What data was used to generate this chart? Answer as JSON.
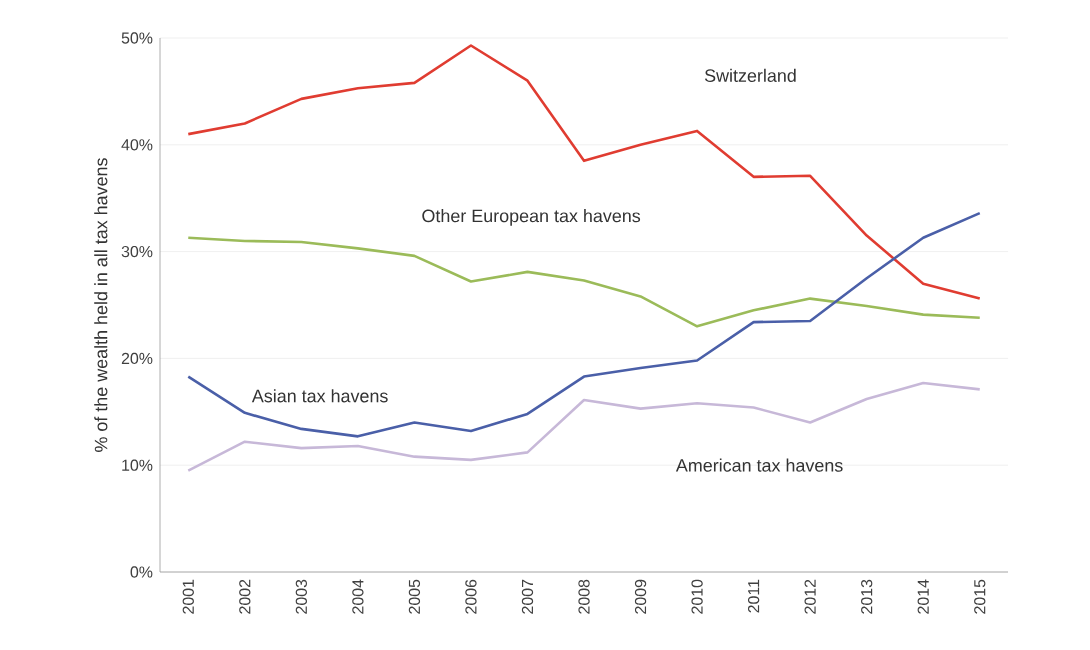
{
  "chart_data": {
    "type": "line",
    "ylabel": "% of the wealth held in all tax havens",
    "categories": [
      "2001",
      "2002",
      "2003",
      "2004",
      "2005",
      "2006",
      "2007",
      "2008",
      "2009",
      "2010",
      "2011",
      "2012",
      "2013",
      "2014",
      "2015"
    ],
    "series": [
      {
        "name": "Switzerland",
        "color": "#e03c31",
        "values": [
          41,
          42,
          44.3,
          45.3,
          45.8,
          49.3,
          46,
          38.5,
          40,
          41.3,
          37,
          37.1,
          31.5,
          27,
          25.6
        ]
      },
      {
        "name": "Other European tax havens",
        "color": "#9bbb59",
        "values": [
          31.3,
          31,
          30.9,
          30.3,
          29.6,
          27.2,
          28.1,
          27.3,
          25.8,
          23,
          24.5,
          25.6,
          24.9,
          24.1,
          23.8
        ]
      },
      {
        "name": "Asian tax havens",
        "color": "#4a5fa8",
        "values": [
          18.3,
          14.9,
          13.4,
          12.7,
          14,
          13.2,
          14.8,
          18.3,
          19.1,
          19.8,
          23.4,
          23.5,
          27.5,
          31.3,
          33.6
        ]
      },
      {
        "name": "American tax havens",
        "color": "#c7b8d8",
        "values": [
          9.5,
          12.2,
          11.6,
          11.8,
          10.8,
          10.5,
          11.2,
          16.1,
          15.3,
          15.8,
          15.4,
          14,
          16.2,
          17.7,
          17.1
        ]
      }
    ],
    "ylim": [
      0,
      50
    ],
    "yticks": [
      {
        "value": 0,
        "label": "0%"
      },
      {
        "value": 10,
        "label": "10%"
      },
      {
        "value": 20,
        "label": "20%"
      },
      {
        "value": 30,
        "label": "30%"
      },
      {
        "value": 40,
        "label": "40%"
      },
      {
        "value": 50,
        "label": "50%"
      }
    ],
    "grid": "y",
    "legend": false,
    "marker": "none",
    "line_style": "solid"
  }
}
